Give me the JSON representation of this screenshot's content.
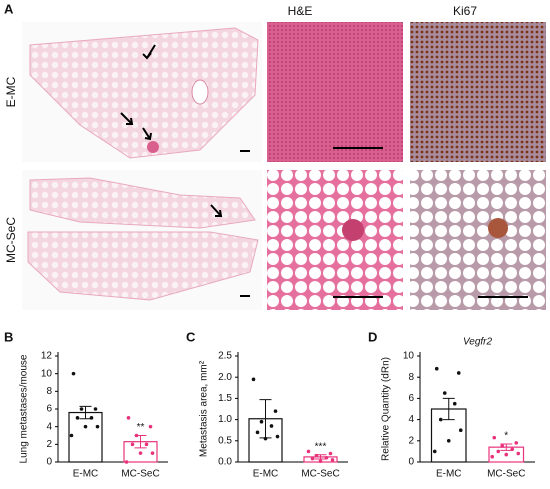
{
  "panel_a": {
    "label": "A",
    "columns": [
      "H&E",
      "Ki67"
    ],
    "rows": [
      "E-MC",
      "MC-SeC"
    ]
  },
  "chart_data": [
    {
      "type": "bar",
      "panel": "B",
      "ylabel": "Lung metastases/mouse",
      "categories": [
        "E-MC",
        "MC-SeC"
      ],
      "series": [
        {
          "name": "E-MC",
          "color": "#111111"
        },
        {
          "name": "MC-SeC",
          "color": "#e8327c"
        }
      ],
      "values": [
        5.6,
        2.3
      ],
      "errors": [
        0.7,
        0.7
      ],
      "annotation": "**",
      "points": [
        [
          10,
          6,
          6,
          5,
          5,
          4,
          4,
          3
        ],
        [
          5,
          4,
          3,
          2,
          2,
          1,
          1,
          0
        ]
      ],
      "ylim": [
        0,
        12
      ],
      "yticks": [
        0,
        2,
        4,
        6,
        8,
        10,
        12
      ]
    },
    {
      "type": "bar",
      "panel": "C",
      "ylabel": "Metastasis  area, mm²",
      "categories": [
        "E-MC",
        "MC-SeC"
      ],
      "series": [
        {
          "name": "E-MC",
          "color": "#111111"
        },
        {
          "name": "MC-SeC",
          "color": "#e8327c"
        }
      ],
      "values": [
        1.02,
        0.12
      ],
      "errors": [
        0.45,
        0.05
      ],
      "annotation": "***",
      "points": [
        [
          1.95,
          1.2,
          0.95,
          0.85,
          0.7,
          0.6,
          0.55
        ],
        [
          0.25,
          0.2,
          0.15,
          0.1,
          0.08,
          0.05,
          0.02
        ]
      ],
      "ylim": [
        0,
        2.5
      ],
      "yticks": [
        {
          "value": 0,
          "label": "0.0"
        },
        0.5,
        {
          "value": 1,
          "label": "1.0"
        },
        1.5,
        {
          "value": 2,
          "label": "2.0"
        },
        2.5
      ]
    },
    {
      "type": "bar",
      "panel": "D",
      "title": "Vegfr2",
      "ylabel": "Relative Quantity (dRn)",
      "categories": [
        "E-MC",
        "MC-SeC"
      ],
      "series": [
        {
          "name": "E-MC",
          "color": "#111111"
        },
        {
          "name": "MC-SeC",
          "color": "#e8327c"
        }
      ],
      "values": [
        5.0,
        1.4
      ],
      "errors": [
        1.0,
        0.3
      ],
      "annotation": "*",
      "points": [
        [
          8.8,
          8.4,
          6.5,
          5.5,
          4,
          3,
          2,
          1
        ],
        [
          2.3,
          1.8,
          1.5,
          1.2,
          1,
          0.8,
          0.7,
          0.5
        ]
      ],
      "ylim": [
        0,
        10
      ],
      "yticks": [
        0,
        2,
        4,
        6,
        8,
        10
      ]
    }
  ]
}
